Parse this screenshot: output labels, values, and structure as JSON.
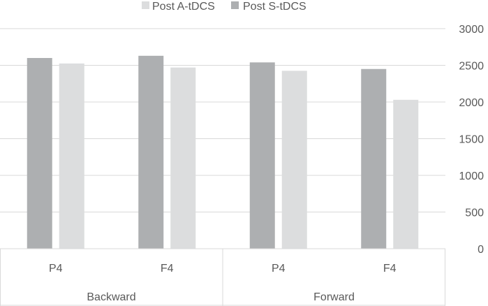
{
  "chart_data": {
    "type": "bar",
    "groups": [
      {
        "label": "Backward",
        "categories": [
          "P4",
          "F4"
        ]
      },
      {
        "label": "Forward",
        "categories": [
          "P4",
          "F4"
        ]
      }
    ],
    "series": [
      {
        "name": "Post S-tDCS",
        "color": "#adafb1",
        "values": [
          2600,
          2630,
          2540,
          2450
        ]
      },
      {
        "name": "Post A-tDCS",
        "color": "#dcddde",
        "values": [
          2525,
          2470,
          2425,
          2030
        ]
      }
    ],
    "legend_order": [
      "Post A-tDCS",
      "Post S-tDCS"
    ],
    "legend_position": "top",
    "yaxis": {
      "position": "right",
      "ticks": [
        0,
        500,
        1000,
        1500,
        2000,
        2500,
        3000
      ],
      "ylim": [
        0,
        3000
      ]
    },
    "grid": true
  }
}
